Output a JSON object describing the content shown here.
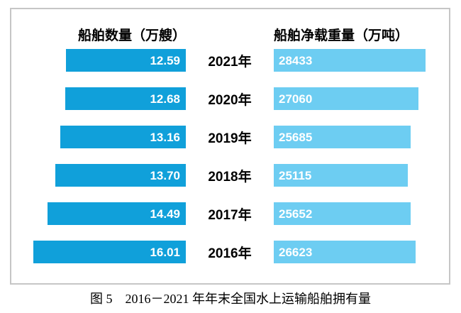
{
  "figure": {
    "caption": "图 5　2016－2021 年年末全国水上运输船舶拥有量"
  },
  "chart_data": {
    "type": "bar",
    "orientation": "horizontal",
    "title": "",
    "categories": [
      "2021年",
      "2020年",
      "2019年",
      "2018年",
      "2017年",
      "2016年"
    ],
    "series": [
      {
        "name": "船舶数量（万艘）",
        "values": [
          12.59,
          12.68,
          13.16,
          13.7,
          14.49,
          16.01
        ],
        "labels": [
          "12.59",
          "12.68",
          "13.16",
          "13.70",
          "14.49",
          "16.01"
        ],
        "color": "#10a0da",
        "label_color": "#ffffff",
        "bar_alignment": "right",
        "axis_range": [
          0,
          16.01
        ]
      },
      {
        "name": "船舶净载重量（万吨）",
        "values": [
          28433,
          27060,
          25685,
          25115,
          25652,
          26623
        ],
        "labels": [
          "28433",
          "27060",
          "25685",
          "25115",
          "25652",
          "26623"
        ],
        "color": "#6dcdf2",
        "label_color": "#ffffff",
        "bar_alignment": "left",
        "axis_range": [
          0,
          28433
        ]
      }
    ],
    "grid": false,
    "legend_position": "column-headers"
  }
}
